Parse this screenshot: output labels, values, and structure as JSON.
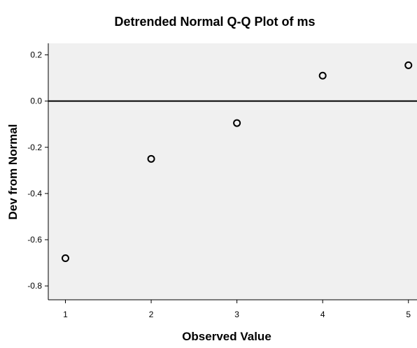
{
  "chart_data": {
    "type": "scatter",
    "title": "Detrended Normal Q-Q Plot of ms",
    "xlabel": "Observed Value",
    "ylabel": "Dev from Normal",
    "xlim": [
      0.8,
      5.1
    ],
    "ylim": [
      -0.86,
      0.25
    ],
    "x_ticks": [
      1,
      2,
      3,
      4,
      5
    ],
    "x_tick_labels": [
      "1",
      "2",
      "3",
      "4",
      "5"
    ],
    "y_ticks": [
      0.2,
      0.0,
      -0.2,
      -0.4,
      -0.6,
      -0.8
    ],
    "y_tick_labels": [
      "0.2",
      "0.0",
      "-0.2",
      "-0.4",
      "-0.6",
      "-0.8"
    ],
    "reference_line_y": 0,
    "grid": false,
    "legend": "none",
    "points": [
      {
        "x": 1,
        "y": -0.68
      },
      {
        "x": 2,
        "y": -0.25
      },
      {
        "x": 3,
        "y": -0.095
      },
      {
        "x": 4,
        "y": 0.11
      },
      {
        "x": 5,
        "y": 0.155
      }
    ],
    "colors": {
      "plot_background": "#f0f0f0",
      "marker_stroke": "#000000",
      "reference_line": "#000000"
    }
  }
}
